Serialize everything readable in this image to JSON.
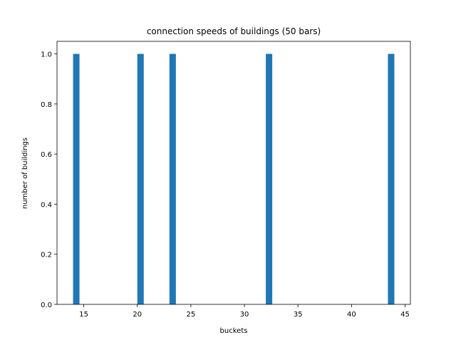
{
  "chart_data": {
    "type": "bar",
    "title": "connection speeds of buildings (50 bars)",
    "xlabel": "buckets",
    "ylabel": "number of buildings",
    "bin_width": 0.6,
    "bars": [
      {
        "x": 14.0,
        "value": 1.0
      },
      {
        "x": 20.0,
        "value": 1.0
      },
      {
        "x": 23.0,
        "value": 1.0
      },
      {
        "x": 32.0,
        "value": 1.0
      },
      {
        "x": 43.4,
        "value": 1.0
      }
    ],
    "xlim": [
      12.5,
      45.5
    ],
    "ylim": [
      0,
      1.05
    ],
    "xticks": [
      15,
      20,
      25,
      30,
      35,
      40,
      45
    ],
    "xtick_labels": [
      "15",
      "20",
      "25",
      "30",
      "35",
      "40",
      "45"
    ],
    "yticks": [
      0.0,
      0.2,
      0.4,
      0.6,
      0.8,
      1.0
    ],
    "ytick_labels": [
      "0.0",
      "0.2",
      "0.4",
      "0.6",
      "0.8",
      "1.0"
    ],
    "bar_color": "#1f77b4",
    "grid": false
  }
}
